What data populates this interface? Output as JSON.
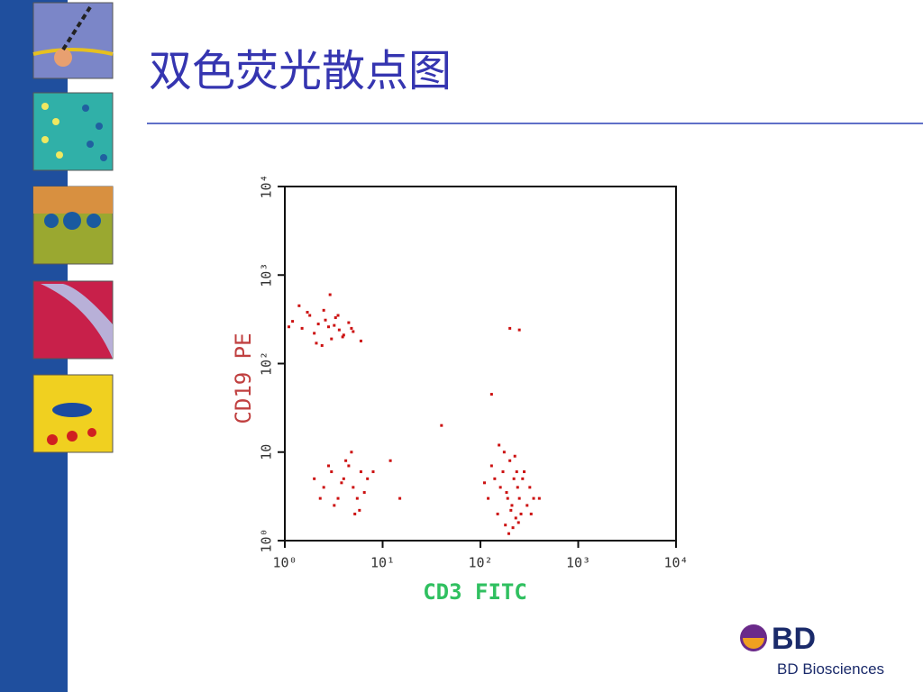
{
  "header": {
    "title": "双色荧光散点图"
  },
  "chart_data": {
    "type": "scatter",
    "x_label": "CD3 FITC",
    "y_label": "CD19 PE",
    "x": [
      1.2,
      1.5,
      1.8,
      2,
      2.2,
      2.5,
      2.8,
      3,
      3.3,
      3.6,
      4,
      4.5,
      5,
      1.4,
      2.1,
      2.6,
      3.2,
      3.9,
      1.1,
      1.7,
      2.4,
      3.5,
      6,
      2.9,
      4.8,
      2,
      2.5,
      3,
      3.5,
      4,
      4.5,
      5,
      5.5,
      6,
      7,
      3.2,
      4.2,
      5.2,
      2.8,
      3.8,
      6.5,
      8,
      2.3,
      4.8,
      5.8,
      120,
      140,
      150,
      160,
      170,
      180,
      190,
      200,
      210,
      220,
      230,
      240,
      250,
      260,
      280,
      300,
      320,
      350,
      130,
      175,
      195,
      215,
      235,
      270,
      155,
      185,
      205,
      225,
      245,
      330,
      110,
      400,
      200,
      250,
      130,
      40,
      12,
      15
    ],
    "values": [
      300,
      250,
      350,
      220,
      280,
      400,
      260,
      190,
      330,
      240,
      210,
      290,
      230,
      450,
      170,
      310,
      270,
      200,
      260,
      380,
      160,
      350,
      180,
      600,
      250,
      5,
      4,
      6,
      3,
      5,
      7,
      4,
      3,
      6,
      5,
      2.5,
      8,
      2,
      7,
      4.5,
      3.5,
      6,
      3,
      10,
      2.2,
      3,
      5,
      2,
      4,
      6,
      1.5,
      3,
      8,
      2.5,
      5,
      1.8,
      4,
      3,
      2,
      6,
      2.5,
      4,
      3,
      7,
      10,
      1.2,
      1.4,
      6,
      5,
      12,
      3.5,
      2.2,
      9,
      1.6,
      2,
      4.5,
      3,
      250,
      240,
      45,
      20,
      8,
      3
    ],
    "color": "#cc1111",
    "log_x": true,
    "log_y": true,
    "xlim": [
      1,
      10000
    ],
    "ylim": [
      1,
      10000
    ],
    "xticks": [
      {
        "value": 1,
        "label": "10⁰"
      },
      {
        "value": 10,
        "label": "10¹"
      },
      {
        "value": 100,
        "label": "10²"
      },
      {
        "value": 1000,
        "label": "10³"
      },
      {
        "value": 10000,
        "label": "10⁴"
      }
    ],
    "yticks": [
      {
        "value": 1,
        "label": "10⁰"
      },
      10,
      {
        "value": 100,
        "label": "10²"
      },
      {
        "value": 1000,
        "label": "10³"
      },
      {
        "value": 10000,
        "label": "10⁴"
      }
    ]
  },
  "footer": {
    "logo": "BD",
    "brand": "BD Biosciences"
  }
}
